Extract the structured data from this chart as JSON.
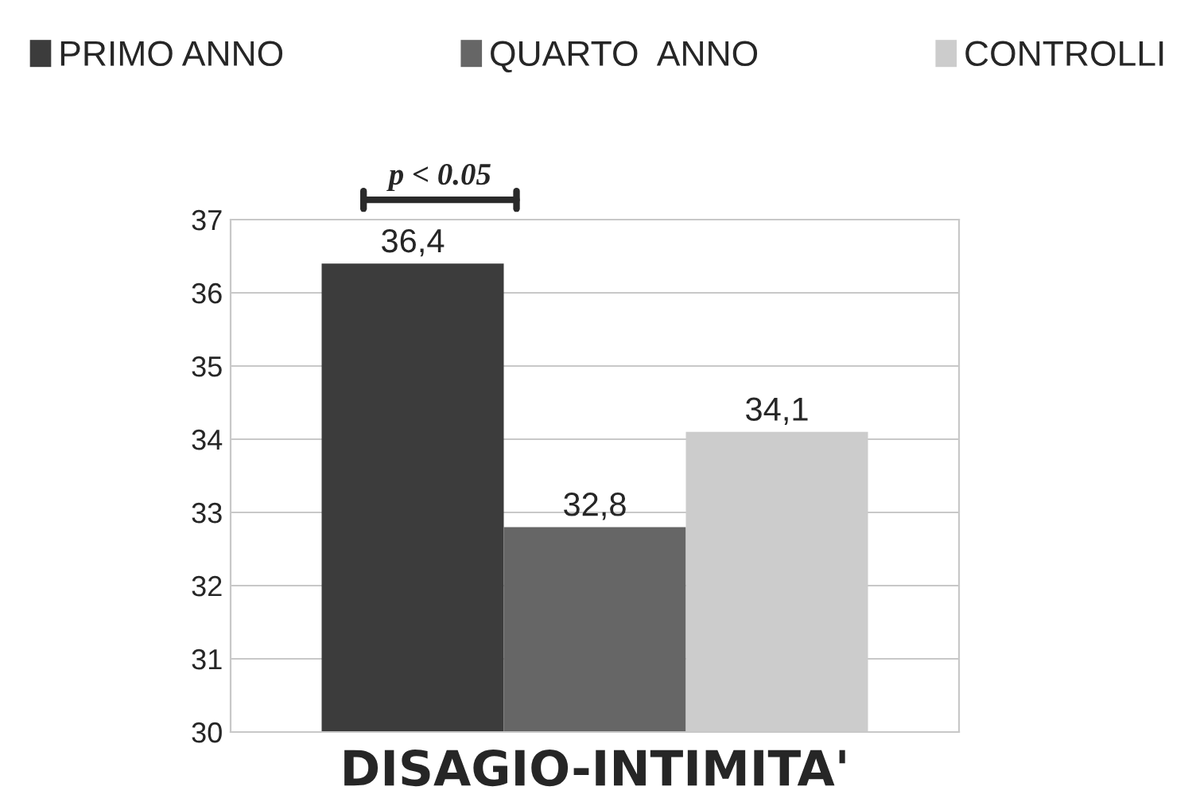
{
  "chart_data": {
    "type": "bar",
    "categories": [
      null,
      null,
      null
    ],
    "xlabel": "DISAGIO-INTIMITA'",
    "series": [
      {
        "name": "PRIMO ANNO",
        "color": "#3c3c3c",
        "values": [
          36.4,
          null,
          null
        ],
        "value_labels": [
          "36,4",
          null,
          null
        ]
      },
      {
        "name": "QUARTO  ANNO",
        "color": "#666666",
        "values": [
          null,
          32.8,
          null
        ],
        "value_labels": [
          null,
          "32,8",
          null
        ]
      },
      {
        "name": "CONTROLLI",
        "color": "#cccccc",
        "values": [
          null,
          null,
          34.1
        ],
        "value_labels": [
          null,
          null,
          "34,1"
        ]
      }
    ],
    "ylim": [
      30,
      37
    ],
    "yticks": [
      30,
      31,
      32,
      33,
      34,
      35,
      36,
      37
    ],
    "grid": "y",
    "legend": "top",
    "annotations": [
      "p < 0.05"
    ]
  }
}
